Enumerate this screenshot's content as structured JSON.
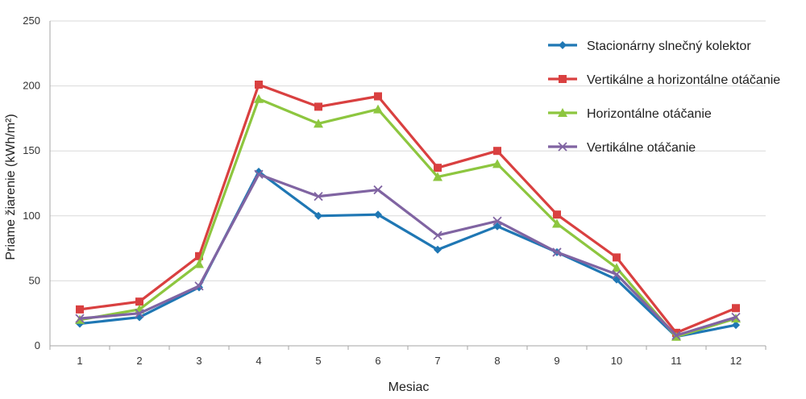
{
  "chart_data": {
    "type": "line",
    "title": "",
    "xlabel": "Mesiac",
    "ylabel": "Priame žiarenie (kWh/m²)",
    "categories": [
      "1",
      "2",
      "3",
      "4",
      "5",
      "6",
      "7",
      "8",
      "9",
      "10",
      "11",
      "12"
    ],
    "ylim": [
      0,
      250
    ],
    "yticks": [
      "0",
      "50",
      "100",
      "150",
      "200",
      "250"
    ],
    "grid": true,
    "legend_position": "right",
    "series": [
      {
        "name": "Stacionárny slnečný kolektor",
        "color": "#1f77b4",
        "marker": "diamond",
        "values": [
          17,
          22,
          45,
          134,
          100,
          101,
          74,
          92,
          72,
          51,
          7,
          16
        ]
      },
      {
        "name": "Vertikálne a horizontálne otáčanie",
        "color": "#d94040",
        "marker": "square",
        "values": [
          28,
          34,
          69,
          201,
          184,
          192,
          137,
          150,
          101,
          68,
          10,
          29
        ]
      },
      {
        "name": "Horizontálne otáčanie",
        "color": "#8dc63f",
        "marker": "triangle",
        "values": [
          20,
          28,
          63,
          190,
          171,
          182,
          130,
          140,
          94,
          60,
          7,
          21
        ]
      },
      {
        "name": "Vertikálne otáčanie",
        "color": "#8064a2",
        "marker": "x",
        "values": [
          21,
          25,
          46,
          132,
          115,
          120,
          85,
          96,
          72,
          55,
          8,
          22
        ]
      }
    ]
  }
}
